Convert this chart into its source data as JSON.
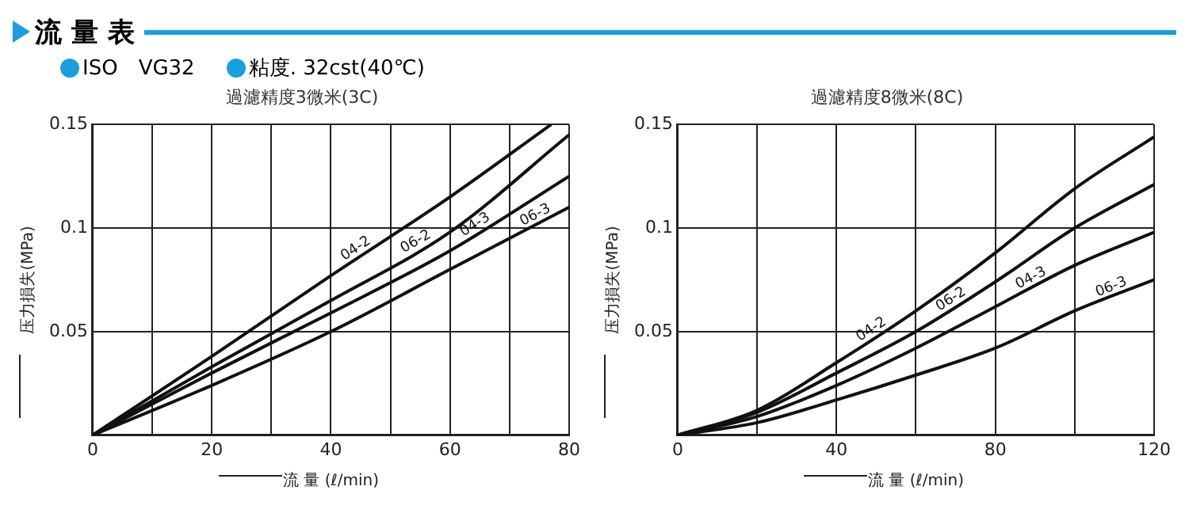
{
  "chart_data": [
    {
      "type": "line",
      "title": "過濾精度3微米(3C)",
      "annotations": [
        "流 量 表",
        "ISO　VG32",
        "粘度. 32cst(40℃)"
      ],
      "xlabel": "流 量 (ℓ/min)",
      "ylabel": "压力損失(MPa)",
      "xlim": [
        0,
        80
      ],
      "xticks": [
        0,
        {
          "value": 10,
          "label": null
        },
        20,
        {
          "value": 30,
          "label": null
        },
        40,
        {
          "value": 50,
          "label": null
        },
        60,
        {
          "value": 70,
          "label": null
        },
        80
      ],
      "ylim": [
        0,
        0.15
      ],
      "yticks": [
        {
          "value": 0,
          "label": null
        },
        0.05,
        0.1,
        0.15
      ],
      "grid": true,
      "legend": false,
      "marker": "none",
      "line_style": "solid",
      "series": [
        {
          "name": "04-2",
          "color": "#111111",
          "x": [
            0,
            20,
            40,
            60,
            77
          ],
          "values": [
            0,
            0.038,
            0.077,
            0.115,
            0.15
          ]
        },
        {
          "name": "06-2",
          "color": "#111111",
          "x": [
            0,
            20,
            40,
            60,
            80
          ],
          "values": [
            0,
            0.033,
            0.065,
            0.098,
            0.145
          ]
        },
        {
          "name": "04-3",
          "color": "#111111",
          "x": [
            0,
            20,
            40,
            60,
            80
          ],
          "values": [
            0,
            0.03,
            0.059,
            0.089,
            0.125
          ]
        },
        {
          "name": "06-3",
          "color": "#111111",
          "x": [
            0,
            20,
            40,
            60,
            80
          ],
          "values": [
            0,
            0.024,
            0.05,
            0.08,
            0.11
          ]
        }
      ]
    },
    {
      "type": "line",
      "title": "過濾精度8微米(8C)",
      "xlabel": "流 量 (ℓ/min)",
      "ylabel": "压力損失(MPa)",
      "xlim": [
        0,
        120
      ],
      "xticks": [
        0,
        {
          "value": 20,
          "label": null
        },
        40,
        {
          "value": 60,
          "label": null
        },
        80,
        {
          "value": 100,
          "label": null
        },
        120
      ],
      "ylim": [
        0,
        0.15
      ],
      "yticks": [
        {
          "value": 0,
          "label": null
        },
        0.05,
        0.1,
        0.15
      ],
      "grid": true,
      "legend": false,
      "marker": "none",
      "line_style": "solid",
      "series": [
        {
          "name": "04-2",
          "color": "#111111",
          "x": [
            0,
            20,
            40,
            60,
            80,
            100,
            120
          ],
          "values": [
            0,
            0.012,
            0.035,
            0.06,
            0.088,
            0.119,
            0.144
          ]
        },
        {
          "name": "06-2",
          "color": "#111111",
          "x": [
            0,
            20,
            40,
            60,
            80,
            100,
            120
          ],
          "values": [
            0,
            0.011,
            0.03,
            0.05,
            0.074,
            0.1,
            0.121
          ]
        },
        {
          "name": "04-3",
          "color": "#111111",
          "x": [
            0,
            20,
            40,
            60,
            80,
            100,
            120
          ],
          "values": [
            0,
            0.009,
            0.024,
            0.042,
            0.062,
            0.082,
            0.098
          ]
        },
        {
          "name": "06-3",
          "color": "#111111",
          "x": [
            0,
            20,
            40,
            60,
            80,
            100,
            120
          ],
          "values": [
            0,
            0.006,
            0.017,
            0.029,
            0.042,
            0.06,
            0.075
          ]
        }
      ]
    }
  ]
}
